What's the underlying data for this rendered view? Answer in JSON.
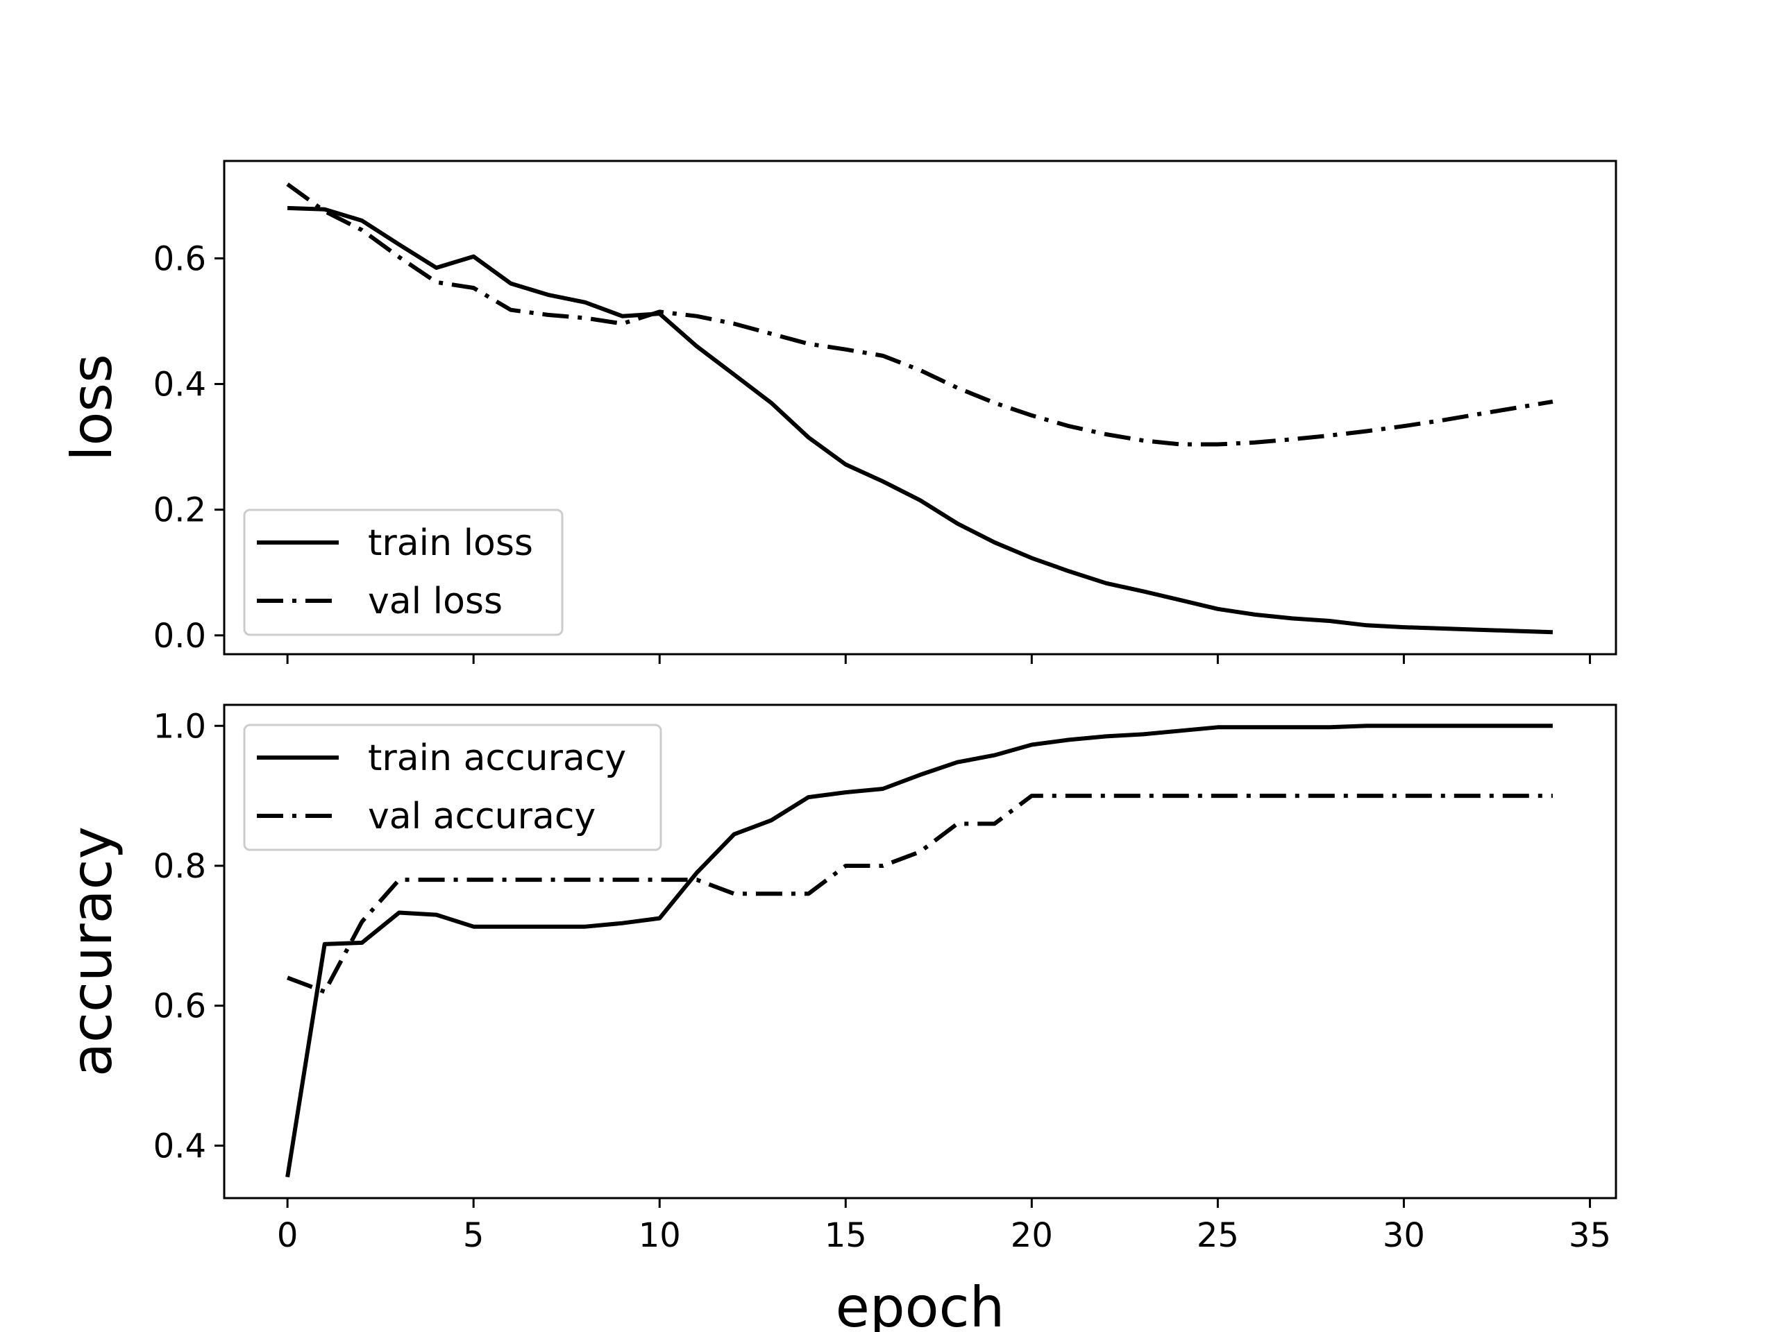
{
  "chart_data": [
    {
      "type": "line",
      "ylabel": "loss",
      "xlabel": "",
      "xlim": [
        -1.7,
        35.7
      ],
      "ylim": [
        -0.03,
        0.755
      ],
      "xticks": [
        0,
        5,
        10,
        15,
        20,
        25,
        30,
        35
      ],
      "yticks": [
        "0.0",
        "0.2",
        "0.4",
        "0.6"
      ],
      "show_xtick_labels": false,
      "grid": false,
      "legend_position": "lower-left",
      "series": [
        {
          "name": "train loss",
          "style": "solid",
          "x": [
            0,
            1,
            2,
            3,
            4,
            5,
            6,
            7,
            8,
            9,
            10,
            11,
            12,
            13,
            14,
            15,
            16,
            17,
            18,
            19,
            20,
            21,
            22,
            23,
            24,
            25,
            26,
            27,
            28,
            29,
            30,
            31,
            32,
            33,
            34
          ],
          "y": [
            0.68,
            0.678,
            0.66,
            0.622,
            0.585,
            0.603,
            0.56,
            0.542,
            0.53,
            0.508,
            0.512,
            0.46,
            0.415,
            0.37,
            0.315,
            0.272,
            0.245,
            0.215,
            0.178,
            0.148,
            0.123,
            0.102,
            0.083,
            0.07,
            0.056,
            0.042,
            0.033,
            0.027,
            0.023,
            0.016,
            0.013,
            0.011,
            0.009,
            0.007,
            0.005
          ]
        },
        {
          "name": "val loss",
          "style": "dashdot",
          "x": [
            0,
            1,
            2,
            3,
            4,
            5,
            6,
            7,
            8,
            9,
            10,
            11,
            12,
            13,
            14,
            15,
            16,
            17,
            18,
            19,
            20,
            21,
            22,
            23,
            24,
            25,
            26,
            27,
            28,
            29,
            30,
            31,
            32,
            33,
            34
          ],
          "y": [
            0.718,
            0.675,
            0.645,
            0.602,
            0.562,
            0.553,
            0.518,
            0.51,
            0.505,
            0.496,
            0.515,
            0.508,
            0.496,
            0.48,
            0.464,
            0.455,
            0.445,
            0.422,
            0.394,
            0.37,
            0.35,
            0.333,
            0.32,
            0.31,
            0.304,
            0.304,
            0.307,
            0.312,
            0.318,
            0.325,
            0.333,
            0.342,
            0.352,
            0.362,
            0.372
          ]
        }
      ]
    },
    {
      "type": "line",
      "ylabel": "accuracy",
      "xlabel": "epoch",
      "xlim": [
        -1.7,
        35.7
      ],
      "ylim": [
        0.325,
        1.03
      ],
      "xticks": [
        0,
        5,
        10,
        15,
        20,
        25,
        30,
        35
      ],
      "yticks": [
        "0.4",
        "0.6",
        "0.8",
        "1.0"
      ],
      "show_xtick_labels": true,
      "grid": false,
      "legend_position": "upper-left",
      "series": [
        {
          "name": "train accuracy",
          "style": "solid",
          "x": [
            0,
            1,
            2,
            3,
            4,
            5,
            6,
            7,
            8,
            9,
            10,
            11,
            12,
            13,
            14,
            15,
            16,
            17,
            18,
            19,
            20,
            21,
            22,
            23,
            24,
            25,
            26,
            27,
            28,
            29,
            30,
            31,
            32,
            33,
            34
          ],
          "y": [
            0.355,
            0.688,
            0.69,
            0.733,
            0.73,
            0.713,
            0.713,
            0.713,
            0.713,
            0.718,
            0.725,
            0.79,
            0.845,
            0.865,
            0.898,
            0.905,
            0.91,
            0.93,
            0.948,
            0.958,
            0.973,
            0.98,
            0.985,
            0.988,
            0.993,
            0.998,
            0.998,
            0.998,
            0.998,
            1.0,
            1.0,
            1.0,
            1.0,
            1.0,
            1.0
          ]
        },
        {
          "name": "val accuracy",
          "style": "dashdot",
          "x": [
            0,
            1,
            2,
            3,
            4,
            5,
            6,
            7,
            8,
            9,
            10,
            11,
            12,
            13,
            14,
            15,
            16,
            17,
            18,
            19,
            20,
            21,
            22,
            23,
            24,
            25,
            26,
            27,
            28,
            29,
            30,
            31,
            32,
            33,
            34
          ],
          "y": [
            0.64,
            0.62,
            0.72,
            0.78,
            0.78,
            0.78,
            0.78,
            0.78,
            0.78,
            0.78,
            0.78,
            0.78,
            0.76,
            0.76,
            0.76,
            0.8,
            0.8,
            0.82,
            0.86,
            0.86,
            0.9,
            0.9,
            0.9,
            0.9,
            0.9,
            0.9,
            0.9,
            0.9,
            0.9,
            0.9,
            0.9,
            0.9,
            0.9,
            0.9,
            0.9
          ]
        }
      ]
    }
  ]
}
